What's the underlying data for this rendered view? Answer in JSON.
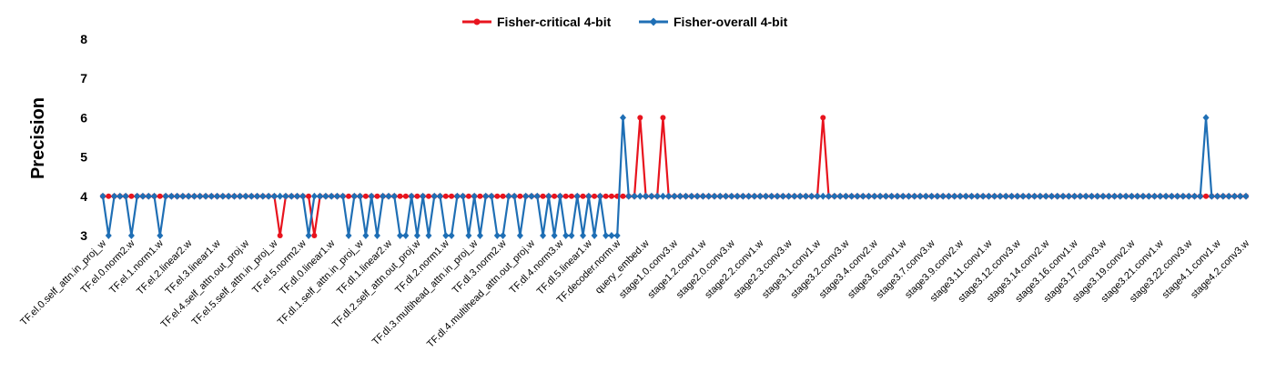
{
  "chart_data": {
    "type": "line",
    "y_label": "Precision",
    "categories": [
      "TF.el.0.self_attn.in_proj_w",
      null,
      null,
      null,
      null,
      "TF.el.0.norm2.w",
      null,
      null,
      null,
      null,
      "TF.el.1.norm1.w",
      null,
      null,
      null,
      null,
      "TF.el.2.linear2.w",
      null,
      null,
      null,
      null,
      "TF.el.3.linear1.w",
      null,
      null,
      null,
      null,
      "TF.el.4.self_attn.out_proj.w",
      null,
      null,
      null,
      null,
      "TF.el.5.self_attn.in_proj_w",
      null,
      null,
      null,
      null,
      "TF.el.5.norm2.w",
      null,
      null,
      null,
      null,
      "TF.dl.0.linear1.w",
      null,
      null,
      null,
      null,
      "TF.dl.1.self_attn.in_proj_w",
      null,
      null,
      null,
      null,
      "TF.dl.1.linear2.w",
      null,
      null,
      null,
      null,
      "TF.dl.2.self_attn.out_proj.w",
      null,
      null,
      null,
      null,
      "TF.dl.2.norm1.w",
      null,
      null,
      null,
      null,
      "TF.dl.3.multihead_attn.in_proj_w",
      null,
      null,
      null,
      null,
      "TF.dl.3.norm2.w",
      null,
      null,
      null,
      null,
      "TF.dl.4.multihead_attn.out_proj.w",
      null,
      null,
      null,
      null,
      "TF.dl.4.norm3.w",
      null,
      null,
      null,
      null,
      "TF.dl.5.linear1.w",
      null,
      null,
      null,
      null,
      "TF.decoder.norm.w",
      null,
      null,
      null,
      null,
      "query_embed.w",
      null,
      null,
      null,
      null,
      "stage1.0.conv3.w",
      null,
      null,
      null,
      null,
      "stage1.2.conv1.w",
      null,
      null,
      null,
      null,
      "stage2.0.conv3.w",
      null,
      null,
      null,
      null,
      "stage2.2.conv1.w",
      null,
      null,
      null,
      null,
      "stage2.3.conv3.w",
      null,
      null,
      null,
      null,
      "stage3.1.conv1.w",
      null,
      null,
      null,
      null,
      "stage3.2.conv3.w",
      null,
      null,
      null,
      null,
      "stage3.4.conv2.w",
      null,
      null,
      null,
      null,
      "stage3.6.conv1.w",
      null,
      null,
      null,
      null,
      "stage3.7.conv3.w",
      null,
      null,
      null,
      null,
      "stage3.9.conv2.w",
      null,
      null,
      null,
      null,
      "stage3.11.conv1.w",
      null,
      null,
      null,
      null,
      "stage3.12.conv3.w",
      null,
      null,
      null,
      null,
      "stage3.14.conv2.w",
      null,
      null,
      null,
      null,
      "stage3.16.conv1.w",
      null,
      null,
      null,
      null,
      "stage3.17.conv3.w",
      null,
      null,
      null,
      null,
      "stage3.19.conv2.w",
      null,
      null,
      null,
      null,
      "stage3.21.conv1.w",
      null,
      null,
      null,
      null,
      "stage3.22.conv3.w",
      null,
      null,
      null,
      null,
      "stage4.1.conv1.w",
      null,
      null,
      null,
      null,
      "stage4.2.conv3.w"
    ],
    "series": [
      {
        "name": "Fisher-critical 4-bit",
        "color": "#e8141e",
        "marker": "circle",
        "values": [
          4,
          4,
          4,
          4,
          4,
          4,
          4,
          4,
          4,
          4,
          4,
          4,
          4,
          4,
          4,
          4,
          4,
          4,
          4,
          4,
          4,
          4,
          4,
          4,
          4,
          4,
          4,
          4,
          4,
          4,
          4,
          3,
          4,
          4,
          4,
          4,
          4,
          3,
          4,
          4,
          4,
          4,
          4,
          4,
          4,
          4,
          4,
          4,
          4,
          4,
          4,
          4,
          4,
          4,
          4,
          4,
          4,
          4,
          4,
          4,
          4,
          4,
          4,
          4,
          4,
          4,
          4,
          4,
          4,
          4,
          4,
          4,
          4,
          4,
          4,
          4,
          4,
          4,
          4,
          4,
          4,
          4,
          4,
          4,
          4,
          4,
          4,
          4,
          4,
          4,
          4,
          4,
          4,
          4,
          6,
          4,
          4,
          4,
          6,
          4,
          4,
          4,
          4,
          4,
          4,
          4,
          4,
          4,
          4,
          4,
          4,
          4,
          4,
          4,
          4,
          4,
          4,
          4,
          4,
          4,
          4,
          4,
          4,
          4,
          4,
          4,
          6,
          4,
          4,
          4,
          4,
          4,
          4,
          4,
          4,
          4,
          4,
          4,
          4,
          4,
          4,
          4,
          4,
          4,
          4,
          4,
          4,
          4,
          4,
          4,
          4,
          4,
          4,
          4,
          4,
          4,
          4,
          4,
          4,
          4,
          4,
          4,
          4,
          4,
          4,
          4,
          4,
          4,
          4,
          4,
          4,
          4,
          4,
          4,
          4,
          4,
          4,
          4,
          4,
          4,
          4,
          4,
          4,
          4,
          4,
          4,
          4,
          4,
          4,
          4,
          4,
          4,
          4,
          4,
          4,
          4,
          4,
          4,
          4,
          4,
          4
        ]
      },
      {
        "name": "Fisher-overall 4-bit",
        "color": "#1f6fb5",
        "marker": "diamond",
        "values": [
          4,
          3,
          4,
          4,
          4,
          3,
          4,
          4,
          4,
          4,
          3,
          4,
          4,
          4,
          4,
          4,
          4,
          4,
          4,
          4,
          4,
          4,
          4,
          4,
          4,
          4,
          4,
          4,
          4,
          4,
          4,
          4,
          4,
          4,
          4,
          4,
          3,
          4,
          4,
          4,
          4,
          4,
          4,
          3,
          4,
          4,
          3,
          4,
          3,
          4,
          4,
          4,
          3,
          3,
          4,
          3,
          4,
          3,
          4,
          4,
          3,
          3,
          4,
          4,
          3,
          4,
          3,
          4,
          4,
          3,
          3,
          4,
          4,
          3,
          4,
          4,
          4,
          3,
          4,
          3,
          4,
          3,
          3,
          4,
          3,
          4,
          3,
          4,
          3,
          3,
          3,
          6,
          4,
          4,
          4,
          4,
          4,
          4,
          4,
          4,
          4,
          4,
          4,
          4,
          4,
          4,
          4,
          4,
          4,
          4,
          4,
          4,
          4,
          4,
          4,
          4,
          4,
          4,
          4,
          4,
          4,
          4,
          4,
          4,
          4,
          4,
          4,
          4,
          4,
          4,
          4,
          4,
          4,
          4,
          4,
          4,
          4,
          4,
          4,
          4,
          4,
          4,
          4,
          4,
          4,
          4,
          4,
          4,
          4,
          4,
          4,
          4,
          4,
          4,
          4,
          4,
          4,
          4,
          4,
          4,
          4,
          4,
          4,
          4,
          4,
          4,
          4,
          4,
          4,
          4,
          4,
          4,
          4,
          4,
          4,
          4,
          4,
          4,
          4,
          4,
          4,
          4,
          4,
          4,
          4,
          4,
          4,
          4,
          4,
          4,
          4,
          4,
          4,
          6,
          4,
          4,
          4,
          4,
          4,
          4,
          4
        ]
      }
    ],
    "ylim": [
      3,
      8
    ],
    "yticks": [
      3,
      4,
      5,
      6,
      7,
      8
    ],
    "grid": false,
    "legend": "top"
  }
}
